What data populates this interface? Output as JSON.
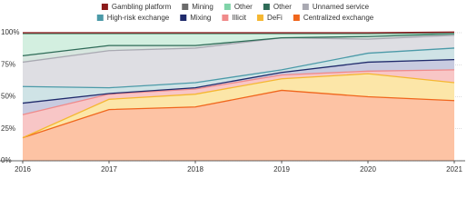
{
  "chart_data": {
    "type": "stacked-area",
    "x": [
      2016,
      2017,
      2018,
      2019,
      2020,
      2021
    ],
    "xlim": [
      2016,
      2021
    ],
    "xticks": [
      2016,
      2017,
      2018,
      2019,
      2020,
      2021
    ],
    "ylim": [
      0,
      100
    ],
    "yticks": [
      {
        "value": 0,
        "label": "0%"
      },
      {
        "value": 25,
        "label": "25%"
      },
      {
        "value": 50,
        "label": "50%"
      },
      {
        "value": 75,
        "label": "75%"
      },
      {
        "value": 100,
        "label": "100%"
      }
    ],
    "grid": true,
    "series": [
      {
        "name": "Centralized exchange",
        "color": "#f0661c",
        "fill": "#fdc3a4",
        "values": [
          18,
          40,
          42,
          55,
          50,
          47
        ]
      },
      {
        "name": "DeFi",
        "color": "#f5b731",
        "fill": "#fce6a8",
        "values": [
          0,
          8,
          10,
          9,
          18,
          14
        ]
      },
      {
        "name": "Illicit",
        "color": "#f08a8a",
        "fill": "#f8c6c6",
        "values": [
          18,
          4,
          4,
          3,
          2,
          10
        ]
      },
      {
        "name": "Mixing",
        "color": "#1f2a6b",
        "fill": "#c8cbe0",
        "values": [
          9,
          0.5,
          1,
          2,
          7,
          8
        ]
      },
      {
        "name": "High-risk exchange",
        "color": "#4b9aa8",
        "fill": "#cfe3e6",
        "values": [
          13,
          4.5,
          4,
          2,
          7,
          9
        ]
      },
      {
        "name": "Unnamed service",
        "color": "#a9a9b2",
        "fill": "#dedee3",
        "values": [
          19,
          29,
          27,
          25,
          11,
          10
        ]
      },
      {
        "name": "Other",
        "color": "#2e6b57",
        "fill": "#d7e6df",
        "values": [
          5,
          4,
          2,
          0,
          2,
          1
        ]
      },
      {
        "name": "Other",
        "color": "#7fd3a8",
        "fill": "#d3efe0",
        "values": [
          17,
          9,
          9,
          3,
          2,
          0.5
        ]
      },
      {
        "name": "Mining",
        "color": "#6b6b6b",
        "fill": "#c9c9c9",
        "values": [
          0.5,
          0.5,
          0.5,
          0.5,
          0.5,
          0.5
        ]
      },
      {
        "name": "Gambling platform",
        "color": "#8b1a1a",
        "fill": "#8b1a1a",
        "values": [
          0.5,
          0.5,
          0.5,
          0.5,
          0.5,
          0.5
        ]
      }
    ]
  }
}
